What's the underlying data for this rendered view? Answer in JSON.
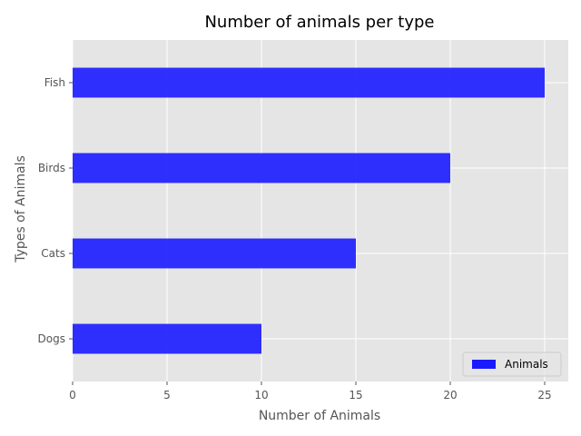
{
  "chart_data": {
    "type": "bar",
    "orientation": "horizontal",
    "title": "Number of animals per type",
    "xlabel": "Number of Animals",
    "ylabel": "Types of Animals",
    "categories": [
      "Dogs",
      "Cats",
      "Birds",
      "Fish"
    ],
    "series": [
      {
        "name": "Animals",
        "values": [
          10,
          15,
          20,
          25
        ],
        "color": "#1a1aff"
      }
    ],
    "xlim": [
      0,
      26.25
    ],
    "xticks": [
      0,
      5,
      10,
      15,
      20,
      25
    ],
    "grid": true,
    "legend_position": "bottom-right",
    "background_color": "#e5e5e5",
    "grid_color": "#ffffff"
  }
}
